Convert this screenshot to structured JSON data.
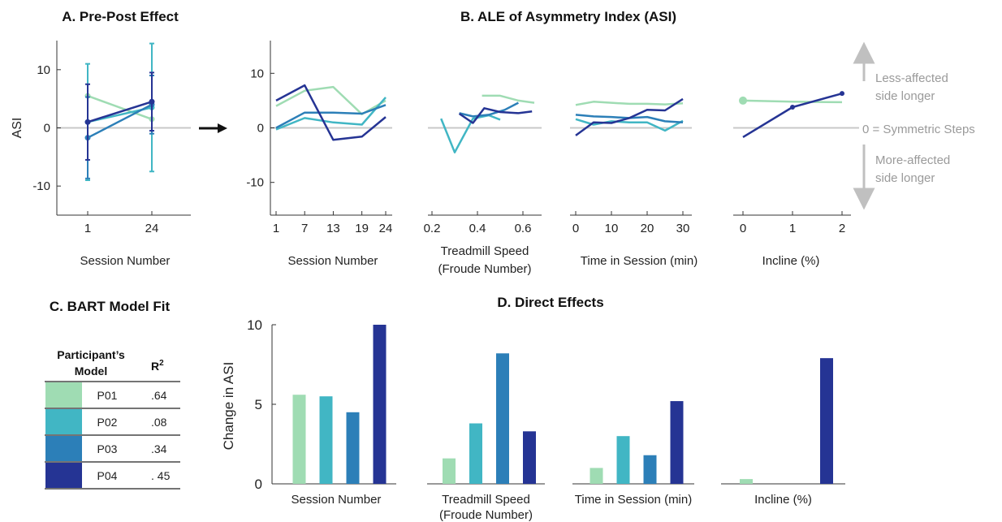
{
  "colors": {
    "P01": "#9FDCB3",
    "P02": "#41B6C4",
    "P03": "#2C7FB8",
    "P04": "#253494",
    "axis": "#333333",
    "zero": "#c8c8c8",
    "note": "#9a9a9a"
  },
  "panel_titles": {
    "a": "A. Pre-Post Effect",
    "b": "B. ALE of Asymmetry Index (ASI)",
    "c": "C. BART Model Fit",
    "d": "D. Direct Effects"
  },
  "annotations": {
    "less1": "Less-affected",
    "less2": "side longer",
    "zero": "0 = Symmetric Steps",
    "more1": "More-affected",
    "more2": "side longer"
  },
  "table": {
    "header_model_1": "Participant’s",
    "header_model_2": "Model",
    "header_r2": "R",
    "header_r2_sup": "2",
    "rows": [
      {
        "participant": "P01",
        "r2": ".64",
        "color": "#9FDCB3"
      },
      {
        "participant": "P02",
        "r2": ".08",
        "color": "#41B6C4"
      },
      {
        "participant": "P03",
        "r2": ".34",
        "color": "#2C7FB8"
      },
      {
        "participant": "P04",
        "r2": ". 45",
        "color": "#253494"
      }
    ]
  },
  "chart_data": [
    {
      "id": "A",
      "type": "line",
      "title": "A. Pre-Post Effect",
      "xlabel": "Session Number",
      "ylabel": "ASI",
      "xticks": [
        "1",
        "24"
      ],
      "yticks": [
        "10",
        "0",
        "-10"
      ],
      "ylim": [
        -15,
        15
      ],
      "series": [
        {
          "name": "P01",
          "x": [
            1,
            24
          ],
          "y": [
            5.5,
            1.5
          ],
          "err": [
            null,
            null
          ]
        },
        {
          "name": "P02",
          "x": [
            1,
            24
          ],
          "y": [
            1.0,
            3.5
          ],
          "err": [
            10,
            11
          ]
        },
        {
          "name": "P03",
          "x": [
            1,
            24
          ],
          "y": [
            -1.7,
            4.0
          ],
          "err": [
            7,
            5
          ]
        },
        {
          "name": "P04",
          "x": [
            1,
            24
          ],
          "y": [
            1.0,
            4.5
          ],
          "err": [
            6.5,
            5
          ]
        }
      ]
    },
    {
      "id": "B1",
      "type": "line",
      "title": "B. ALE of Asymmetry Index (ASI)",
      "xlabel": "Session Number",
      "xticks": [
        "1",
        "7",
        "13",
        "19",
        "24"
      ],
      "yticks": [
        "10",
        "0",
        "-10"
      ],
      "ylim": [
        -16,
        16
      ],
      "series": [
        {
          "name": "P01",
          "x": [
            1,
            7,
            13,
            19,
            24
          ],
          "y": [
            4.0,
            6.8,
            7.5,
            2.5,
            5.0
          ]
        },
        {
          "name": "P02",
          "x": [
            1,
            7,
            13,
            19,
            24
          ],
          "y": [
            -0.3,
            1.8,
            1.0,
            0.6,
            5.6
          ]
        },
        {
          "name": "P03",
          "x": [
            1,
            7,
            13,
            19,
            24
          ],
          "y": [
            0.0,
            2.8,
            2.8,
            2.6,
            4.2
          ]
        },
        {
          "name": "P04",
          "x": [
            1,
            7,
            13,
            19,
            24
          ],
          "y": [
            5.0,
            7.8,
            -2.2,
            -1.6,
            2.0
          ]
        }
      ]
    },
    {
      "id": "B2",
      "type": "line",
      "xlabel": "Treadmill Speed",
      "xlabel2": "(Froude Number)",
      "xticks": [
        "0.2",
        "0.4",
        "0.6"
      ],
      "ylim": [
        -16,
        16
      ],
      "series": [
        {
          "name": "P01",
          "x": [
            0.42,
            0.5,
            0.58,
            0.65
          ],
          "y": [
            5.9,
            5.9,
            5.0,
            4.6
          ]
        },
        {
          "name": "P02",
          "x": [
            0.24,
            0.3,
            0.38,
            0.45,
            0.5
          ],
          "y": [
            1.7,
            -4.5,
            1.7,
            2.3,
            1.5
          ]
        },
        {
          "name": "P03",
          "x": [
            0.32,
            0.38,
            0.45,
            0.52,
            0.58
          ],
          "y": [
            2.7,
            2.1,
            2.4,
            3.3,
            4.6
          ]
        },
        {
          "name": "P04",
          "x": [
            0.32,
            0.38,
            0.43,
            0.5,
            0.58,
            0.64
          ],
          "y": [
            2.6,
            0.9,
            3.6,
            2.9,
            2.7,
            3.0
          ]
        }
      ]
    },
    {
      "id": "B3",
      "type": "line",
      "xlabel": "Time in Session (min)",
      "xticks": [
        "0",
        "10",
        "20",
        "30"
      ],
      "ylim": [
        -16,
        16
      ],
      "series": [
        {
          "name": "P01",
          "x": [
            0,
            5,
            10,
            15,
            20,
            25,
            30
          ],
          "y": [
            4.2,
            4.8,
            4.6,
            4.4,
            4.4,
            4.3,
            4.5
          ]
        },
        {
          "name": "P02",
          "x": [
            0,
            5,
            10,
            15,
            20,
            25,
            30
          ],
          "y": [
            1.6,
            0.6,
            1.2,
            1.0,
            1.0,
            -0.5,
            1.3
          ]
        },
        {
          "name": "P03",
          "x": [
            0,
            5,
            10,
            15,
            20,
            25,
            30
          ],
          "y": [
            2.4,
            2.1,
            2.0,
            1.8,
            2.0,
            1.2,
            1.0
          ]
        },
        {
          "name": "P04",
          "x": [
            0,
            5,
            10,
            15,
            20,
            25,
            30
          ],
          "y": [
            -1.4,
            1.0,
            0.9,
            1.8,
            3.3,
            3.2,
            5.3
          ]
        }
      ]
    },
    {
      "id": "B4",
      "type": "line",
      "xlabel": "Incline (%)",
      "xticks": [
        "0",
        "1",
        "2"
      ],
      "ylim": [
        -16,
        16
      ],
      "series": [
        {
          "name": "P01",
          "x": [
            0,
            1,
            2
          ],
          "y": [
            5.0,
            4.8,
            4.7
          ]
        },
        {
          "name": "P04",
          "x": [
            0,
            1,
            2
          ],
          "y": [
            -1.7,
            3.8,
            6.3
          ]
        }
      ]
    },
    {
      "id": "D",
      "type": "bar",
      "title": "D. Direct Effects",
      "ylabel": "Change in ASI",
      "yticks": [
        "10",
        "5",
        "0"
      ],
      "ylim": [
        0,
        10
      ],
      "groups": [
        {
          "label": "Session Number",
          "label2": "",
          "values": [
            5.6,
            5.5,
            4.5,
            10.0
          ]
        },
        {
          "label": "Treadmill Speed",
          "label2": "(Froude Number)",
          "values": [
            1.6,
            3.8,
            8.2,
            3.3
          ]
        },
        {
          "label": "Time in Session (min)",
          "label2": "",
          "values": [
            1.0,
            3.0,
            1.8,
            5.2
          ]
        },
        {
          "label": "Incline (%)",
          "label2": "",
          "values": [
            0.3,
            0,
            0,
            7.9
          ]
        }
      ],
      "series_names": [
        "P01",
        "P02",
        "P03",
        "P04"
      ]
    }
  ]
}
